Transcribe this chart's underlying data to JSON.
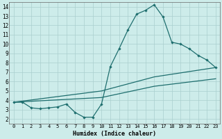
{
  "title": "",
  "xlabel": "Humidex (Indice chaleur)",
  "bg_color": "#cdecea",
  "grid_color": "#aacfce",
  "line_color": "#1e6e6e",
  "xlim": [
    -0.5,
    23.5
  ],
  "ylim": [
    1.5,
    14.5
  ],
  "xticks": [
    0,
    1,
    2,
    3,
    4,
    5,
    6,
    7,
    8,
    9,
    10,
    11,
    12,
    13,
    14,
    15,
    16,
    17,
    18,
    19,
    20,
    21,
    22,
    23
  ],
  "yticks": [
    2,
    3,
    4,
    5,
    6,
    7,
    8,
    9,
    10,
    11,
    12,
    13,
    14
  ],
  "curve1_x": [
    0,
    1,
    2,
    3,
    4,
    5,
    6,
    7,
    8,
    9,
    10,
    11,
    12,
    13,
    14,
    15,
    16,
    17,
    18,
    19,
    20,
    21,
    22,
    23
  ],
  "curve1_y": [
    3.8,
    3.8,
    3.2,
    3.1,
    3.2,
    3.3,
    3.6,
    2.7,
    2.2,
    2.2,
    3.6,
    7.6,
    9.5,
    11.5,
    13.2,
    13.6,
    14.2,
    12.9,
    10.2,
    10.0,
    9.5,
    8.8,
    8.3,
    7.5
  ],
  "line2_x": [
    0,
    10,
    16,
    23
  ],
  "line2_y": [
    3.8,
    5.0,
    6.5,
    7.5
  ],
  "line3_x": [
    0,
    10,
    16,
    23
  ],
  "line3_y": [
    3.8,
    4.3,
    5.5,
    6.3
  ]
}
